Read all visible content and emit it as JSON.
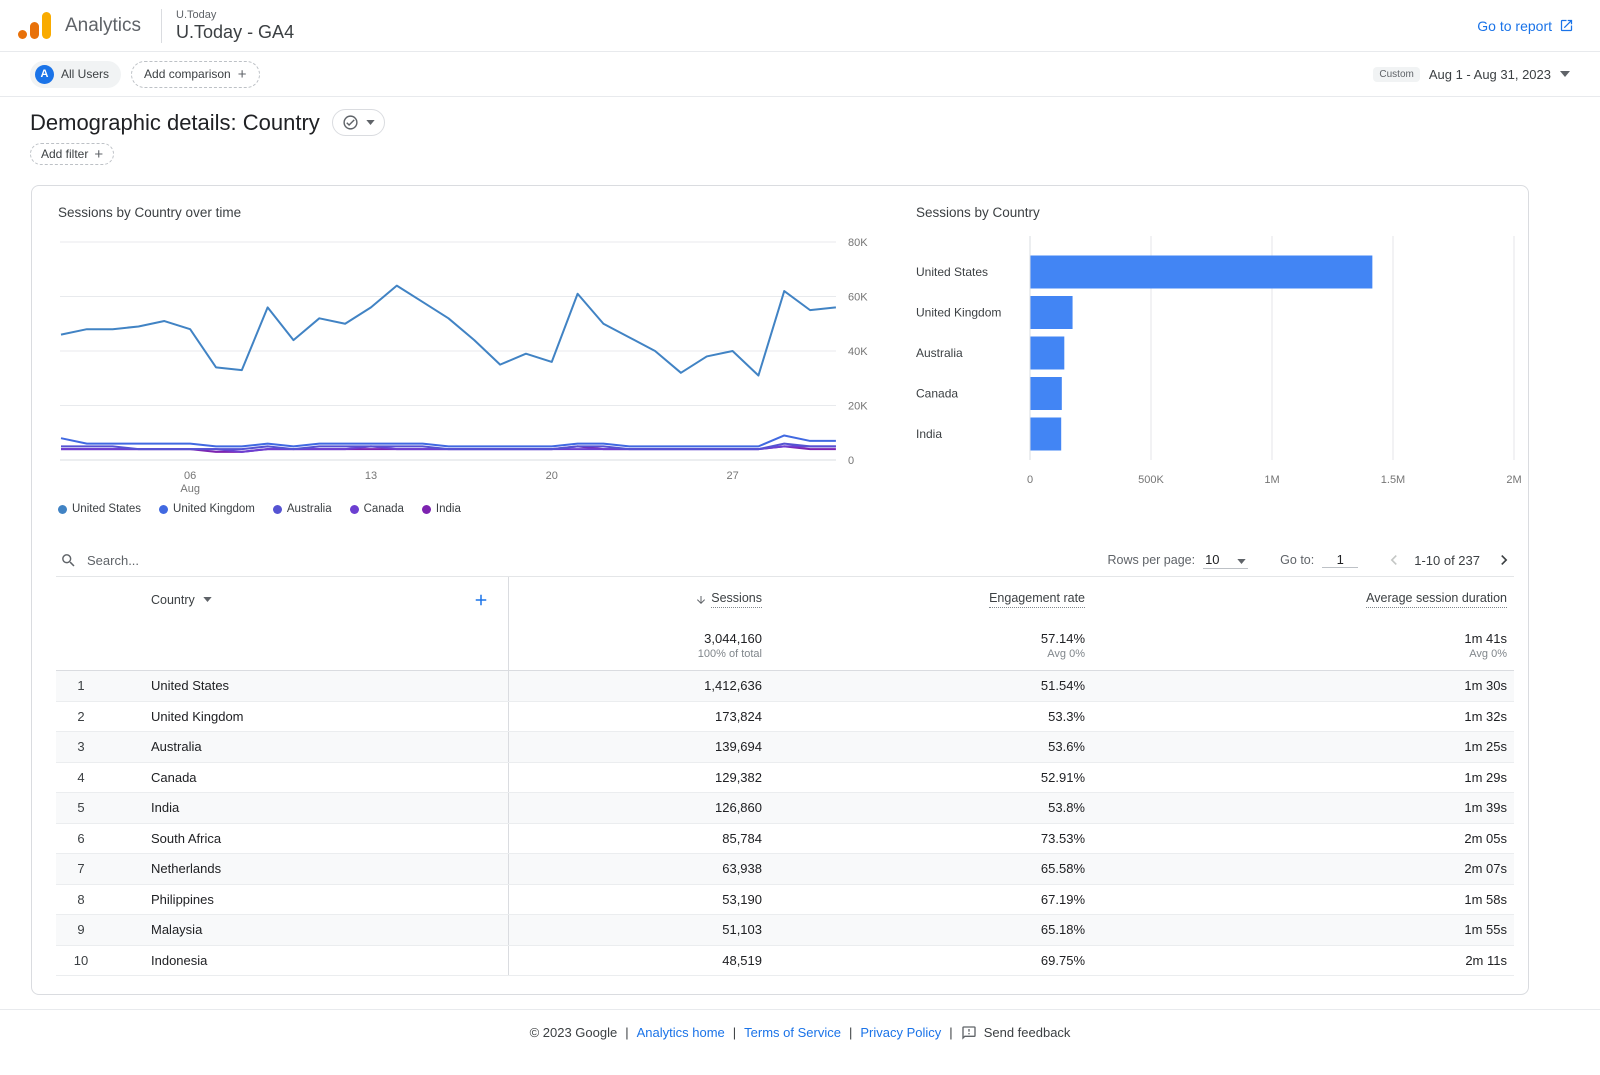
{
  "appbar": {
    "brand": "Analytics",
    "property_label": "U.Today",
    "property_name": "U.Today - GA4",
    "go_to_report": "Go to report"
  },
  "controls": {
    "segment_avatar": "A",
    "segment_chip": "All Users",
    "add_comparison": "Add comparison",
    "date_range_type": "Custom",
    "date_range": "Aug 1 - Aug 31, 2023"
  },
  "page": {
    "title": "Demographic details: Country",
    "add_filter": "Add filter"
  },
  "chart_data": [
    {
      "type": "line",
      "title": "Sessions by Country over time",
      "x": [
        1,
        2,
        3,
        4,
        5,
        6,
        7,
        8,
        9,
        10,
        11,
        12,
        13,
        14,
        15,
        16,
        17,
        18,
        19,
        20,
        21,
        22,
        23,
        24,
        25,
        26,
        27,
        28,
        29,
        30,
        31
      ],
      "x_unit": "day of August 2023",
      "x_ticks": [
        {
          "day": 6,
          "label": "06",
          "sublabel": "Aug"
        },
        {
          "day": 13,
          "label": "13"
        },
        {
          "day": 20,
          "label": "20"
        },
        {
          "day": 27,
          "label": "27"
        }
      ],
      "ylim": [
        0,
        80000
      ],
      "y_tick_values": [
        0,
        20000,
        40000,
        60000,
        80000
      ],
      "y_tick_labels": [
        "0",
        "20K",
        "40K",
        "60K",
        "80K"
      ],
      "grid": true,
      "legend_position": "bottom",
      "series": [
        {
          "name": "United States",
          "color": "#4183c4",
          "values": [
            46000,
            48000,
            48000,
            49000,
            51000,
            48000,
            34000,
            33000,
            56000,
            44000,
            52000,
            50000,
            56000,
            64000,
            58000,
            52000,
            44000,
            35000,
            39000,
            36000,
            61000,
            50000,
            45000,
            40000,
            32000,
            38000,
            40000,
            31000,
            62000,
            55000,
            56000
          ]
        },
        {
          "name": "United Kingdom",
          "color": "#4169e1",
          "values": [
            8000,
            6000,
            6000,
            6000,
            6000,
            6000,
            5000,
            5000,
            6000,
            5000,
            6000,
            6000,
            6000,
            6000,
            6000,
            5000,
            5000,
            5000,
            5000,
            5000,
            6000,
            6000,
            5000,
            5000,
            5000,
            5000,
            5000,
            5000,
            9000,
            7000,
            7000
          ]
        },
        {
          "name": "Australia",
          "color": "#5553d2",
          "values": [
            5000,
            5000,
            5000,
            4000,
            4000,
            4000,
            4000,
            4000,
            5000,
            4000,
            5000,
            5000,
            5000,
            5000,
            5000,
            4000,
            4000,
            4000,
            4000,
            4000,
            5000,
            5000,
            4000,
            4000,
            4000,
            4000,
            4000,
            4000,
            6000,
            5000,
            5000
          ]
        },
        {
          "name": "Canada",
          "color": "#6c3fd1",
          "values": [
            4000,
            4000,
            4000,
            4000,
            4000,
            4000,
            4000,
            3000,
            4000,
            4000,
            4000,
            4000,
            5000,
            4000,
            4000,
            4000,
            4000,
            4000,
            4000,
            4000,
            4000,
            4000,
            4000,
            4000,
            4000,
            4000,
            4000,
            4000,
            5000,
            5000,
            5000
          ]
        },
        {
          "name": "India",
          "color": "#7d23b0",
          "values": [
            4000,
            4000,
            4000,
            4000,
            4000,
            4000,
            3000,
            3000,
            4000,
            4000,
            4000,
            4000,
            4000,
            4000,
            4000,
            4000,
            4000,
            4000,
            4000,
            4000,
            5000,
            4000,
            4000,
            4000,
            4000,
            4000,
            4000,
            4000,
            5000,
            4000,
            4000
          ]
        }
      ],
      "grid_color": "#e8eaed",
      "axis_label_color": "#757575"
    },
    {
      "type": "bar",
      "orientation": "horizontal",
      "title": "Sessions by Country",
      "categories": [
        "United States",
        "United Kingdom",
        "Australia",
        "Canada",
        "India"
      ],
      "values": [
        1412636,
        173824,
        139694,
        129382,
        126860
      ],
      "xlim": [
        0,
        2000000
      ],
      "x_tick_values": [
        0,
        500000,
        1000000,
        1500000,
        2000000
      ],
      "x_tick_labels": [
        "0",
        "500K",
        "1M",
        "1.5M",
        "2M"
      ],
      "bar_color": "#4285f4",
      "grid": true,
      "grid_color": "#e4e6e8",
      "axis_label_color": "#757575"
    }
  ],
  "table": {
    "search_placeholder": "Search...",
    "rows_per_page_label": "Rows per page:",
    "rows_per_page_value": "10",
    "goto_label": "Go to:",
    "goto_value": "1",
    "range_text": "1-10 of 237",
    "columns": [
      "Country",
      "Sessions",
      "Engagement rate",
      "Average session duration"
    ],
    "totals": {
      "sessions": "3,044,160",
      "sessions_sub": "100% of total",
      "engagement": "57.14%",
      "engagement_sub": "Avg 0%",
      "duration": "1m 41s",
      "duration_sub": "Avg 0%"
    },
    "rows": [
      {
        "rank": "1",
        "country": "United States",
        "sessions": "1,412,636",
        "engagement_rate": "51.54%",
        "avg_session_duration": "1m 30s"
      },
      {
        "rank": "2",
        "country": "United Kingdom",
        "sessions": "173,824",
        "engagement_rate": "53.3%",
        "avg_session_duration": "1m 32s"
      },
      {
        "rank": "3",
        "country": "Australia",
        "sessions": "139,694",
        "engagement_rate": "53.6%",
        "avg_session_duration": "1m 25s"
      },
      {
        "rank": "4",
        "country": "Canada",
        "sessions": "129,382",
        "engagement_rate": "52.91%",
        "avg_session_duration": "1m 29s"
      },
      {
        "rank": "5",
        "country": "India",
        "sessions": "126,860",
        "engagement_rate": "53.8%",
        "avg_session_duration": "1m 39s"
      },
      {
        "rank": "6",
        "country": "South Africa",
        "sessions": "85,784",
        "engagement_rate": "73.53%",
        "avg_session_duration": "2m 05s"
      },
      {
        "rank": "7",
        "country": "Netherlands",
        "sessions": "63,938",
        "engagement_rate": "65.58%",
        "avg_session_duration": "2m 07s"
      },
      {
        "rank": "8",
        "country": "Philippines",
        "sessions": "53,190",
        "engagement_rate": "67.19%",
        "avg_session_duration": "1m 58s"
      },
      {
        "rank": "9",
        "country": "Malaysia",
        "sessions": "51,103",
        "engagement_rate": "65.18%",
        "avg_session_duration": "1m 55s"
      },
      {
        "rank": "10",
        "country": "Indonesia",
        "sessions": "48,519",
        "engagement_rate": "69.75%",
        "avg_session_duration": "2m 11s"
      }
    ]
  },
  "footer": {
    "copyright": "© 2023 Google",
    "separator": "|",
    "links": [
      "Analytics home",
      "Terms of Service",
      "Privacy Policy"
    ],
    "send_feedback": "Send feedback"
  }
}
